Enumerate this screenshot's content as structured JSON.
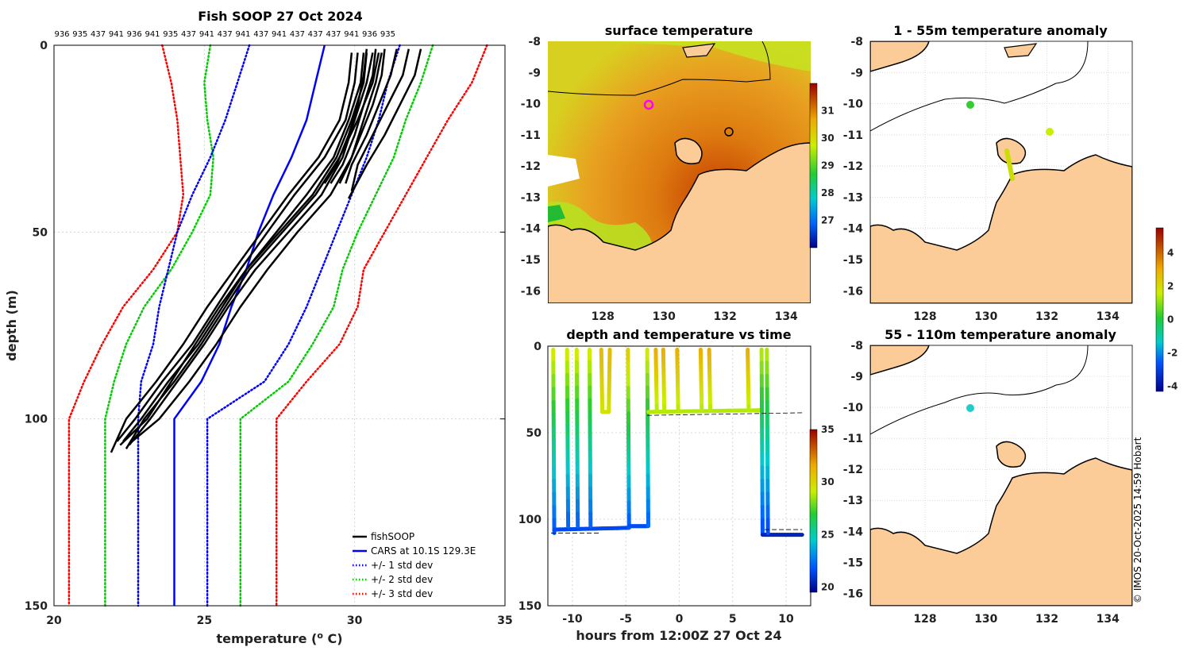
{
  "chart_data": [
    {
      "id": "profile",
      "type": "line",
      "title": "Fish SOOP 27 Oct 2024",
      "top_ids": [
        "936",
        "935",
        "437",
        "941",
        "936",
        "941",
        "935",
        "437",
        "941",
        "437",
        "941",
        "437",
        "941",
        "437",
        "437",
        "437",
        "941",
        "936",
        "935"
      ],
      "xlabel": "temperature (",
      "xlabel_sup": "o",
      "xlabel_end": " C)",
      "ylabel": "depth (m)",
      "xlim": [
        20,
        35
      ],
      "ylim": [
        150,
        0
      ],
      "xticks": [
        "20",
        "25",
        "30",
        "35"
      ],
      "yticks": [
        "0",
        "50",
        "100",
        "150"
      ],
      "legend": [
        {
          "label": "fishSOOP",
          "color": "#000000",
          "style": "solid"
        },
        {
          "label": "CARS at 10.1S 129.3E",
          "color": "#0000ff",
          "style": "solid"
        },
        {
          "label": "+/- 1 std dev",
          "color": "#0000ff",
          "style": "dotted"
        },
        {
          "label": "+/- 2 std dev",
          "color": "#00cc00",
          "style": "dotted"
        },
        {
          "label": "+/- 3 std dev",
          "color": "#ff0000",
          "style": "dotted"
        }
      ],
      "cars_depth": [
        0,
        10,
        20,
        30,
        40,
        50,
        60,
        70,
        80,
        90,
        100,
        110,
        120,
        130,
        140,
        150
      ],
      "cars_temp": [
        29.0,
        28.7,
        28.4,
        27.9,
        27.3,
        26.8,
        26.4,
        25.9,
        25.5,
        24.9,
        24.0,
        24.0,
        24.0,
        24.0,
        24.0,
        24.0
      ],
      "std1_lo": [
        26.5,
        26.1,
        25.7,
        25.2,
        24.6,
        24.1,
        23.8,
        23.5,
        23.3,
        22.9,
        22.8,
        22.8,
        22.8,
        22.8,
        22.8,
        22.8
      ],
      "std1_hi": [
        31.5,
        31.1,
        30.8,
        30.4,
        29.9,
        29.4,
        28.9,
        28.4,
        27.8,
        27.0,
        25.1,
        25.1,
        25.1,
        25.1,
        25.1,
        25.1
      ],
      "std2_lo": [
        25.2,
        25.0,
        25.1,
        25.3,
        25.2,
        24.6,
        23.9,
        23.0,
        22.4,
        22.0,
        21.7,
        21.7,
        21.7,
        21.7,
        21.7,
        21.7
      ],
      "std2_hi": [
        32.6,
        32.2,
        31.7,
        31.3,
        30.7,
        30.1,
        29.6,
        29.3,
        28.6,
        27.8,
        26.2,
        26.2,
        26.2,
        26.2,
        26.2,
        26.2
      ],
      "std3_lo": [
        23.6,
        23.9,
        24.1,
        24.2,
        24.3,
        24.1,
        23.3,
        22.3,
        21.6,
        21.0,
        20.5,
        20.5,
        20.5,
        20.5,
        20.5,
        20.5
      ],
      "std3_hi": [
        34.4,
        33.9,
        33.1,
        32.4,
        31.7,
        31.0,
        30.3,
        30.1,
        29.5,
        28.4,
        27.4,
        27.4,
        27.4,
        27.4,
        27.4,
        27.4
      ],
      "fish_profiles": [
        {
          "temp": [
            30.1,
            30.0,
            29.7,
            29.0,
            28.0,
            27.1,
            26.2,
            25.4,
            24.6,
            23.6,
            22.7,
            22.1
          ],
          "depth": [
            2,
            10,
            20,
            30,
            40,
            50,
            60,
            70,
            80,
            90,
            100,
            106
          ]
        },
        {
          "temp": [
            30.3,
            30.2,
            29.8,
            29.3,
            28.4,
            27.4,
            26.4,
            25.6,
            24.8,
            23.8,
            22.9,
            22.3
          ],
          "depth": [
            2,
            10,
            20,
            30,
            40,
            50,
            60,
            70,
            80,
            90,
            100,
            106
          ]
        },
        {
          "temp": [
            30.6,
            30.4,
            30.0,
            29.6,
            28.9,
            27.8,
            26.7,
            25.8,
            25.0,
            24.1,
            23.2,
            22.5
          ],
          "depth": [
            2,
            10,
            20,
            30,
            40,
            50,
            60,
            70,
            80,
            90,
            100,
            107
          ]
        },
        {
          "temp": [
            29.9,
            29.8,
            29.5,
            28.8,
            27.8,
            26.9,
            26.0,
            25.1,
            24.3,
            23.4,
            22.4,
            21.9
          ],
          "depth": [
            2,
            10,
            20,
            30,
            40,
            50,
            60,
            70,
            80,
            90,
            100,
            109
          ]
        },
        {
          "temp": [
            30.8,
            30.6,
            30.1,
            29.5,
            28.7,
            27.6,
            26.5,
            25.7,
            24.9,
            24.0,
            23.0,
            22.4
          ],
          "depth": [
            2,
            10,
            20,
            30,
            40,
            50,
            60,
            70,
            80,
            90,
            100,
            108
          ]
        },
        {
          "temp": [
            30.9,
            30.7,
            30.3,
            29.9,
            29.2,
            28.1,
            27.1,
            26.2,
            25.4,
            24.5,
            23.5,
            22.6
          ],
          "depth": [
            2,
            10,
            20,
            30,
            40,
            50,
            60,
            70,
            80,
            90,
            100,
            106
          ]
        },
        {
          "temp": [
            30.4,
            30.3,
            29.9,
            29.4,
            28.6,
            27.5,
            26.4,
            25.5,
            24.7,
            23.9,
            23.1,
            22.2
          ],
          "depth": [
            2,
            10,
            20,
            30,
            40,
            50,
            60,
            70,
            80,
            90,
            100,
            107
          ]
        }
      ],
      "fish_short": [
        {
          "temp": [
            32.2,
            32.0,
            31.5,
            31.0,
            30.4,
            29.8
          ],
          "depth": [
            1,
            8,
            16,
            24,
            32,
            41
          ]
        },
        {
          "temp": [
            31.8,
            31.6,
            31.1,
            30.6,
            30.1,
            29.9
          ],
          "depth": [
            1,
            8,
            16,
            24,
            32,
            39
          ]
        },
        {
          "temp": [
            31.4,
            31.2,
            30.8,
            30.4,
            29.9,
            29.7
          ],
          "depth": [
            1,
            8,
            16,
            24,
            32,
            37
          ]
        },
        {
          "temp": [
            31.0,
            30.9,
            30.6,
            30.2,
            29.8,
            29.5
          ],
          "depth": [
            1,
            8,
            16,
            24,
            32,
            37
          ]
        },
        {
          "temp": [
            30.7,
            30.6,
            30.3,
            30.0,
            29.6,
            29.2
          ],
          "depth": [
            1,
            8,
            16,
            24,
            32,
            37
          ]
        },
        {
          "temp": [
            30.4,
            30.3,
            30.1,
            29.8,
            29.4,
            29.0
          ],
          "depth": [
            1,
            8,
            16,
            24,
            32,
            37
          ]
        }
      ]
    },
    {
      "id": "sst",
      "type": "heatmap",
      "title": "surface temperature",
      "xticks": [
        "128",
        "130",
        "132",
        "134"
      ],
      "yticks": [
        "-8",
        "-9",
        "-10",
        "-11",
        "-12",
        "-13",
        "-14",
        "-15",
        "-16"
      ],
      "xlim": [
        126.2,
        134.8
      ],
      "ylim": [
        -16.4,
        -8
      ],
      "colorbar": {
        "min": 26,
        "max": 32,
        "ticks": [
          "27",
          "28",
          "29",
          "30",
          "31"
        ]
      }
    },
    {
      "id": "anom1",
      "type": "heatmap",
      "title": "1 - 55m temperature anomaly",
      "xticks": [
        "128",
        "130",
        "132",
        "134"
      ],
      "yticks": [
        "-8",
        "-9",
        "-10",
        "-11",
        "-12",
        "-13",
        "-14",
        "-15",
        "-16"
      ],
      "colorbar": {
        "min": -4.3,
        "max": 5.5,
        "ticks": [
          "4",
          "2",
          "0",
          "-2",
          "-4"
        ]
      }
    },
    {
      "id": "anom2",
      "type": "heatmap",
      "title": "55 - 110m temperature anomaly",
      "xticks": [
        "128",
        "130",
        "132",
        "134"
      ],
      "yticks": [
        "-8",
        "-9",
        "-10",
        "-11",
        "-12",
        "-13",
        "-14",
        "-15",
        "-16"
      ]
    },
    {
      "id": "timeseries",
      "type": "scatter",
      "title": "depth and temperature vs time",
      "xlabel": "hours from 12:00Z 27 Oct 24",
      "xlim": [
        -12.3,
        12.3
      ],
      "ylim": [
        150,
        0
      ],
      "xticks": [
        "-10",
        "-5",
        "0",
        "5",
        "10"
      ],
      "yticks": [
        "0",
        "50",
        "100",
        "150"
      ],
      "colorbar": {
        "min": 19.5,
        "max": 35,
        "ticks": [
          "35",
          "30",
          "25",
          "20"
        ]
      }
    }
  ],
  "credit": "© IMOS 20-Oct-2025 14:59 Hobart"
}
